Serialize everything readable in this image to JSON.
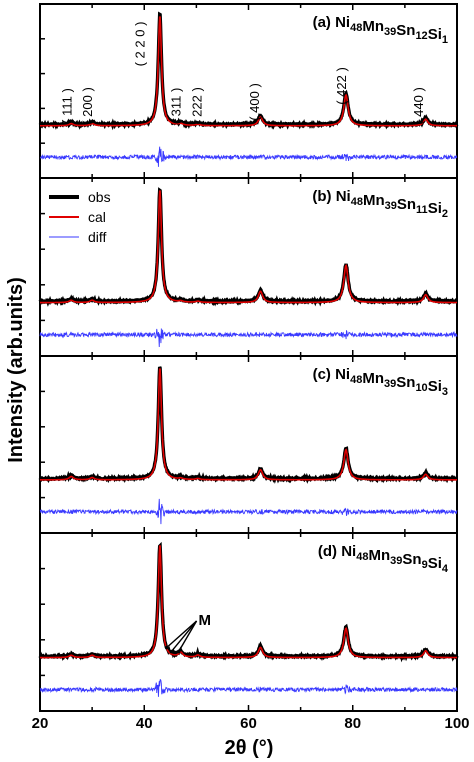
{
  "chart_data": {
    "type": "line",
    "xlabel": "2θ (°)",
    "ylabel": "Intensity (arb.units)",
    "xlim": [
      20,
      100
    ],
    "xticks": [
      20,
      40,
      60,
      80,
      100
    ],
    "legend": {
      "placement": "top-left of panel (b)",
      "entries": [
        {
          "name": "obs",
          "color": "#000000"
        },
        {
          "name": "cal",
          "color": "#e00000"
        },
        {
          "name": "diff",
          "color": "#3a3aff"
        }
      ]
    },
    "colors": {
      "obs": "#000000",
      "cal": "#e00000",
      "diff": "#3a3aff"
    },
    "peaks_2theta": [
      26.0,
      30.0,
      43.0,
      47.0,
      50.3,
      62.3,
      78.7,
      94.0
    ],
    "panels": [
      {
        "id": "a",
        "prefix": "(a) ",
        "formula": [
          [
            "Ni",
            "48"
          ],
          [
            "Mn",
            "39"
          ],
          [
            "Sn",
            "12"
          ],
          [
            "Si",
            "1"
          ]
        ],
        "peak_heights": [
          0.02,
          0.02,
          1.0,
          0.015,
          0.012,
          0.08,
          0.28,
          0.06
        ],
        "reflections": [
          {
            "label": "( 111 )",
            "x": 26.0
          },
          {
            "label": "( 200 )",
            "x": 30.0
          },
          {
            "label": "( 2 2 0 )",
            "x": 40.0
          },
          {
            "label": "( 311 )",
            "x": 47.0
          },
          {
            "label": "( 222 )",
            "x": 51.0
          },
          {
            "label": "( 400 )",
            "x": 62.0
          },
          {
            "label": "( 422 )",
            "x": 78.7
          },
          {
            "label": "( 440 )",
            "x": 93.5
          }
        ],
        "annotation": ""
      },
      {
        "id": "b",
        "prefix": "(b) ",
        "formula": [
          [
            "Ni",
            "48"
          ],
          [
            "Mn",
            "39"
          ],
          [
            "Sn",
            "11"
          ],
          [
            "Si",
            "2"
          ]
        ],
        "peak_heights": [
          0.02,
          0.02,
          1.0,
          0.01,
          0.01,
          0.1,
          0.33,
          0.07
        ],
        "reflections": [],
        "annotation": ""
      },
      {
        "id": "c",
        "prefix": "(c) ",
        "formula": [
          [
            "Ni",
            "48"
          ],
          [
            "Mn",
            "39"
          ],
          [
            "Sn",
            "10"
          ],
          [
            "Si",
            "3"
          ]
        ],
        "peak_heights": [
          0.03,
          0.02,
          1.0,
          0.01,
          0.01,
          0.09,
          0.27,
          0.05
        ],
        "reflections": [],
        "annotation": ""
      },
      {
        "id": "d",
        "prefix": "(d) ",
        "formula": [
          [
            "Ni",
            "48"
          ],
          [
            "Mn",
            "39"
          ],
          [
            "Sn",
            "9"
          ],
          [
            "Si",
            "4"
          ]
        ],
        "peak_heights": [
          0.02,
          0.02,
          1.0,
          0.04,
          0.02,
          0.09,
          0.26,
          0.06
        ],
        "reflections": [],
        "annotation": "M"
      }
    ]
  }
}
